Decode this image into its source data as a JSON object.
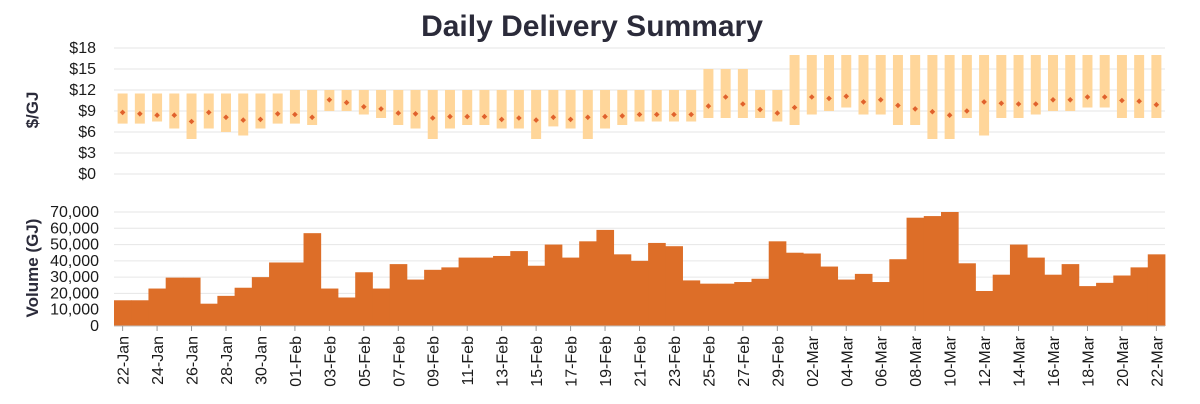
{
  "chart_data": [
    {
      "type": "range_bar_with_markers",
      "title": "Daily Delivery Summary",
      "ylabel": "$/GJ",
      "ylim": [
        0,
        18
      ],
      "yticks": [
        0,
        3,
        6,
        9,
        12,
        15,
        18
      ],
      "ytick_labels": [
        "$0",
        "$3",
        "$6",
        "$9",
        "$12",
        "$15",
        "$18"
      ],
      "categories": [
        "22-Jan",
        "23-Jan",
        "24-Jan",
        "25-Jan",
        "26-Jan",
        "27-Jan",
        "28-Jan",
        "29-Jan",
        "30-Jan",
        "31-Jan",
        "01-Feb",
        "02-Feb",
        "03-Feb",
        "04-Feb",
        "05-Feb",
        "06-Feb",
        "07-Feb",
        "08-Feb",
        "09-Feb",
        "10-Feb",
        "11-Feb",
        "12-Feb",
        "13-Feb",
        "14-Feb",
        "15-Feb",
        "16-Feb",
        "17-Feb",
        "18-Feb",
        "19-Feb",
        "20-Feb",
        "21-Feb",
        "22-Feb",
        "23-Feb",
        "24-Feb",
        "25-Feb",
        "26-Feb",
        "27-Feb",
        "28-Feb",
        "29-Feb",
        "01-Mar",
        "02-Mar",
        "03-Mar",
        "04-Mar",
        "05-Mar",
        "06-Mar",
        "07-Mar",
        "08-Mar",
        "09-Mar",
        "10-Mar",
        "11-Mar",
        "12-Mar",
        "13-Mar",
        "14-Mar",
        "15-Mar",
        "16-Mar",
        "17-Mar",
        "18-Mar",
        "19-Mar",
        "20-Mar",
        "21-Mar",
        "22-Mar"
      ],
      "low": [
        7.2,
        7.2,
        7.5,
        6.5,
        5.0,
        6.5,
        6.0,
        5.5,
        6.5,
        7.2,
        7.2,
        7.0,
        9.0,
        9.0,
        8.5,
        8.0,
        7.0,
        6.5,
        5.0,
        6.5,
        7.0,
        7.0,
        6.5,
        6.5,
        5.0,
        6.8,
        6.5,
        5.0,
        6.5,
        7.0,
        7.5,
        7.5,
        7.5,
        7.5,
        8.0,
        8.0,
        8.0,
        8.0,
        7.5,
        7.0,
        8.5,
        9.0,
        9.5,
        8.5,
        8.5,
        7.0,
        7.0,
        5.0,
        5.0,
        8.0,
        5.5,
        8.0,
        8.0,
        8.5,
        9.0,
        9.0,
        9.5,
        9.5,
        8.0,
        8.0,
        8.0
      ],
      "high": [
        11.5,
        11.5,
        11.5,
        11.5,
        11.5,
        11.5,
        11.5,
        11.5,
        11.5,
        11.5,
        12.0,
        12.0,
        12.0,
        12.0,
        12.0,
        12.0,
        12.0,
        12.0,
        12.0,
        12.0,
        12.0,
        12.0,
        12.0,
        12.0,
        12.0,
        12.0,
        12.0,
        12.0,
        12.0,
        12.0,
        12.0,
        12.0,
        12.0,
        12.0,
        15.0,
        15.0,
        15.0,
        12.0,
        12.0,
        17.0,
        17.0,
        17.0,
        17.0,
        17.0,
        17.0,
        17.0,
        17.0,
        17.0,
        17.0,
        17.0,
        17.0,
        17.0,
        17.0,
        17.0,
        17.0,
        17.0,
        17.0,
        17.0,
        17.0,
        17.0,
        17.0
      ],
      "marker": [
        8.8,
        8.6,
        8.4,
        8.4,
        7.5,
        8.8,
        8.1,
        7.7,
        7.8,
        8.6,
        8.5,
        8.1,
        10.6,
        10.2,
        9.6,
        9.3,
        8.7,
        8.6,
        8.0,
        8.2,
        8.2,
        8.2,
        7.8,
        8.0,
        7.7,
        8.1,
        7.8,
        8.1,
        8.2,
        8.3,
        8.5,
        8.5,
        8.5,
        8.5,
        9.7,
        11.0,
        10.0,
        9.2,
        8.7,
        9.5,
        11.0,
        10.8,
        11.1,
        10.3,
        10.6,
        9.8,
        9.3,
        8.9,
        8.4,
        9.0,
        10.3,
        10.1,
        10.0,
        10.0,
        10.6,
        10.6,
        11.0,
        11.0,
        10.5,
        10.4,
        9.9
      ],
      "colors": {
        "range": "#ffd69a",
        "marker": "#e0612c"
      }
    },
    {
      "type": "bar",
      "ylabel": "Volume (GJ)",
      "ylim": [
        0,
        70000
      ],
      "yticks": [
        0,
        10000,
        20000,
        30000,
        40000,
        50000,
        60000,
        70000
      ],
      "ytick_labels": [
        "0",
        "10,000",
        "20,000",
        "30,000",
        "40,000",
        "50,000",
        "60,000",
        "70,000"
      ],
      "x_tick_labels": [
        "22-Jan",
        "24-Jan",
        "26-Jan",
        "28-Jan",
        "30-Jan",
        "01-Feb",
        "03-Feb",
        "05-Feb",
        "07-Feb",
        "09-Feb",
        "11-Feb",
        "13-Feb",
        "15-Feb",
        "17-Feb",
        "19-Feb",
        "21-Feb",
        "23-Feb",
        "25-Feb",
        "27-Feb",
        "29-Feb",
        "02-Mar",
        "04-Mar",
        "06-Mar",
        "08-Mar",
        "10-Mar",
        "12-Mar",
        "14-Mar",
        "16-Mar",
        "18-Mar",
        "20-Mar",
        "22-Mar"
      ],
      "values": [
        15800,
        15800,
        23000,
        29700,
        29700,
        13700,
        18500,
        23500,
        30000,
        39000,
        39000,
        57000,
        23000,
        17500,
        33000,
        23000,
        38000,
        28500,
        34500,
        36000,
        42000,
        42000,
        43000,
        46000,
        37000,
        50000,
        42000,
        52000,
        59000,
        44000,
        40000,
        51000,
        49000,
        28000,
        26000,
        26000,
        27000,
        29000,
        52000,
        45000,
        44500,
        36500,
        28500,
        32000,
        27000,
        41000,
        66500,
        67500,
        70000,
        38500,
        21500,
        31500,
        50000,
        42000,
        31500,
        38000,
        24500,
        26500,
        31000,
        36000,
        44000
      ],
      "colors": {
        "bar": "#dd6e28"
      }
    }
  ]
}
